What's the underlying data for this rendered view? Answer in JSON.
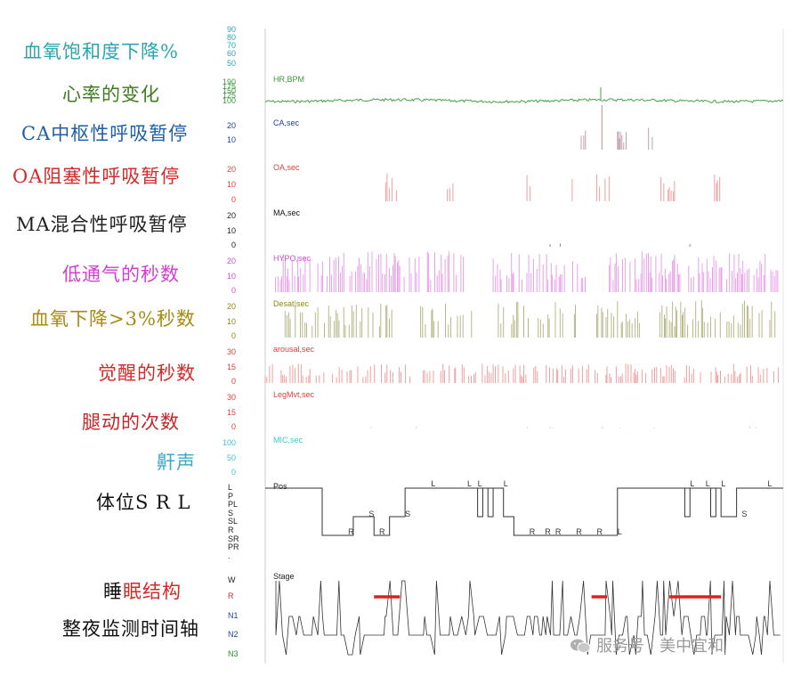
{
  "left_labels": [
    {
      "text": "血氧饱和度下降%",
      "color": "#2aa6b0"
    },
    {
      "text": "心率的变化",
      "color": "#3e7d1e"
    },
    {
      "text": "CA中枢性呼吸暂停",
      "color": "#1e5fa8"
    },
    {
      "text": "OA阻塞性呼吸暂停",
      "color": "#d42a2a"
    },
    {
      "text": "MA混合性呼吸暂停",
      "color": "#222222"
    },
    {
      "text": "低通气的秒数",
      "color": "#d23fd2"
    },
    {
      "text": "血氧下降>3%秒数",
      "color": "#a88a10"
    },
    {
      "text": "觉醒的秒数",
      "color": "#d42a2a"
    },
    {
      "text": "腿动的次数",
      "color": "#c4262a"
    },
    {
      "text": "鼾声",
      "color": "#3aa8c8"
    },
    {
      "text": "体位S R L",
      "color": "#111111"
    }
  ],
  "bottom_labels": {
    "sleep_structure": {
      "part1": "睡",
      "part2": "眠",
      "part3": "结构",
      "color1": "#111111",
      "color2": "#d42a2a",
      "color3": "#d42a2a"
    },
    "timeline": "整夜监测时间轴"
  },
  "watermark": "服务号 · 美中宜和",
  "chart_data": {
    "type": "hypnogram-multichannel",
    "channels": [
      {
        "name": "",
        "ticks": [
          "90",
          "80",
          "70",
          "60",
          "50"
        ],
        "color": "#2aa6b0"
      },
      {
        "name": "HR,BPM",
        "ticks": [
          "190",
          "175",
          "150",
          "125",
          "100"
        ],
        "color": "#3e9a3e"
      },
      {
        "name": "CA,sec",
        "ticks": [
          "20",
          "10"
        ],
        "color": "#1e3fa8"
      },
      {
        "name": "OA,sec",
        "ticks": [
          "20",
          "10",
          "0"
        ],
        "color": "#e04040"
      },
      {
        "name": "MA,sec",
        "ticks": [
          "20",
          "10",
          "0"
        ],
        "color": "#111111"
      },
      {
        "name": "HYPO,sec",
        "ticks": [
          "20",
          "10",
          "0"
        ],
        "color": "#d24fd2"
      },
      {
        "name": "Desat,sec",
        "ticks": [
          "20",
          "10",
          "0"
        ],
        "color": "#8a8a10"
      },
      {
        "name": "arousal,sec",
        "ticks": [
          "30",
          "15",
          "0"
        ],
        "color": "#e04040"
      },
      {
        "name": "LegMvt,sec",
        "ticks": [
          "30",
          "15",
          "0"
        ],
        "color": "#e04040"
      },
      {
        "name": "MIC,sec",
        "ticks": [
          "100",
          "50",
          "0"
        ],
        "color": "#3ac8c8"
      }
    ],
    "position": {
      "name": "Pos",
      "categories": [
        "L",
        "P",
        "PL",
        "S",
        "SL",
        "R",
        "SR",
        "PR",
        "."
      ],
      "marks": [
        "L",
        "L",
        "L",
        "L",
        "S",
        "S",
        "R",
        "R",
        "R",
        "R",
        "R",
        "R",
        "R",
        "L",
        "L",
        "L",
        "L",
        "S",
        "L"
      ],
      "segments": [
        {
          "t": 0.0,
          "v": "L"
        },
        {
          "t": 0.11,
          "v": "R"
        },
        {
          "t": 0.17,
          "v": "S"
        },
        {
          "t": 0.21,
          "v": "R"
        },
        {
          "t": 0.24,
          "v": "S"
        },
        {
          "t": 0.27,
          "v": "L"
        },
        {
          "t": 0.36,
          "v": "L"
        },
        {
          "t": 0.41,
          "v": "L"
        },
        {
          "t": 0.46,
          "v": "S"
        },
        {
          "t": 0.48,
          "v": "R"
        },
        {
          "t": 0.63,
          "v": "R"
        },
        {
          "t": 0.68,
          "v": "L"
        },
        {
          "t": 0.83,
          "v": "L"
        },
        {
          "t": 0.88,
          "v": "S"
        },
        {
          "t": 0.91,
          "v": "L"
        },
        {
          "t": 1.0,
          "v": "L"
        }
      ],
      "color": "#222222"
    },
    "stage": {
      "name": "Stage",
      "categories": [
        "W",
        "R",
        "N1",
        "N2",
        "N3"
      ],
      "category_colors": [
        "#222222",
        "#d42a2a",
        "#1e3fa8",
        "#1e3fa8",
        "#2a8a2a"
      ],
      "rem_periods": [
        [
          0.21,
          0.26
        ],
        [
          0.63,
          0.66
        ],
        [
          0.78,
          0.88
        ]
      ],
      "color": "#111111",
      "rem_color": "#e02020"
    }
  }
}
